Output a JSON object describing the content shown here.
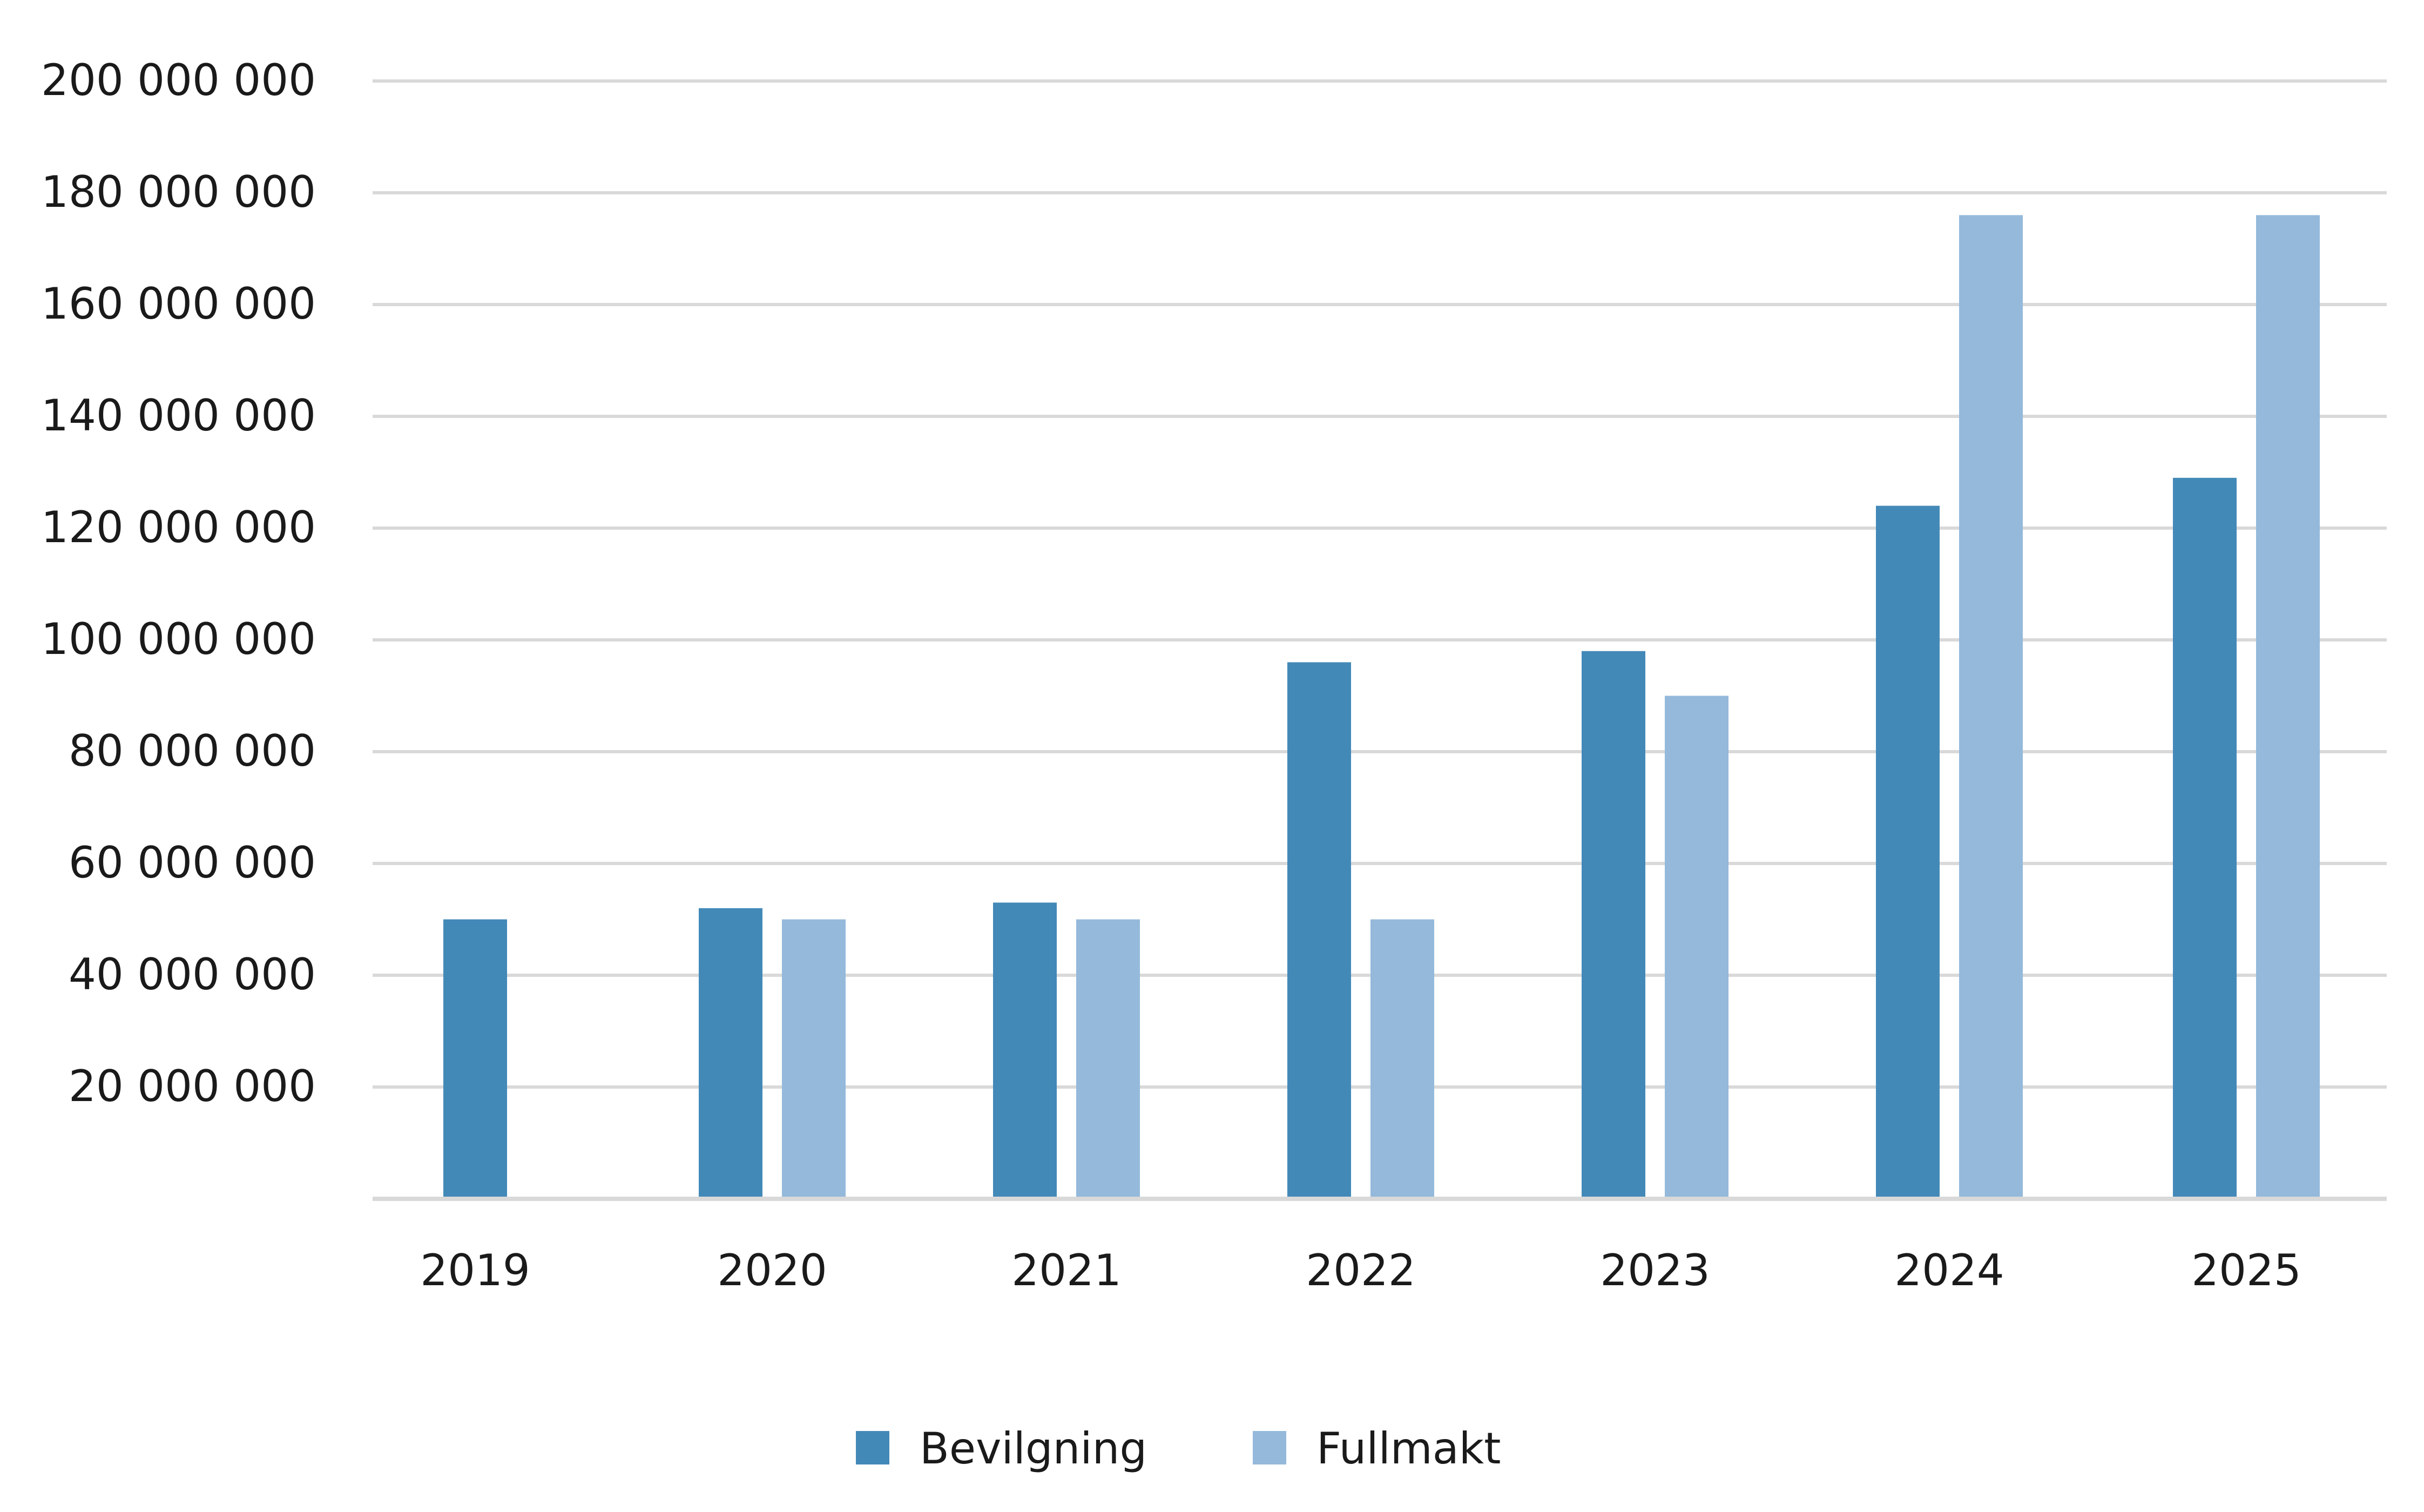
{
  "chart_data": {
    "type": "bar",
    "title": "",
    "xlabel": "",
    "ylabel": "",
    "categories": [
      "2019",
      "2020",
      "2021",
      "2022",
      "2023",
      "2024",
      "2025"
    ],
    "series": [
      {
        "name": "Bevilgning",
        "color": "#4389b8",
        "values": [
          50000000,
          52000000,
          53000000,
          96000000,
          98000000,
          124000000,
          129000000
        ]
      },
      {
        "name": "Fullmakt",
        "color": "#94b9db",
        "values": [
          null,
          50000000,
          50000000,
          50000000,
          90000000,
          176000000,
          176000000
        ]
      }
    ],
    "ylim": [
      0,
      200000000
    ],
    "yticks": [
      20000000,
      40000000,
      60000000,
      80000000,
      100000000,
      120000000,
      140000000,
      160000000,
      180000000,
      200000000
    ],
    "ytick_labels": [
      "20 000 000",
      "40 000 000",
      "60 000 000",
      "80 000 000",
      "100 000 000",
      "120 000 000",
      "140 000 000",
      "160 000 000",
      "180 000 000",
      "200 000 000"
    ],
    "grid": true,
    "legend_position": "bottom-center"
  }
}
